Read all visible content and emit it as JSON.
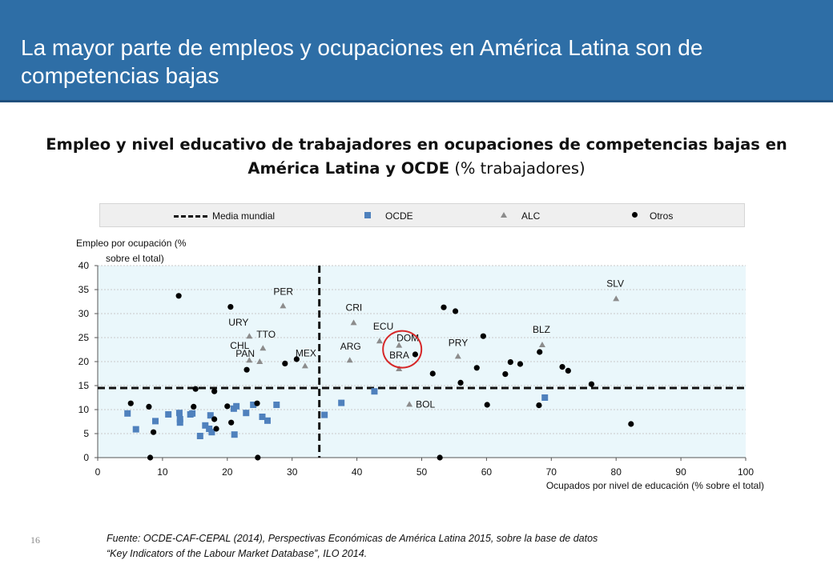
{
  "header": {
    "title": "La mayor parte de empleos y ocupaciones en América Latina son de competencias bajas"
  },
  "subtitle": {
    "bold": "Empleo y nivel educativo de trabajadores en ocupaciones de competencias bajas en América Latina y OCDE",
    "normal": " (% trabajadores)"
  },
  "legend": {
    "mean": "Media mundial",
    "oecd": "OCDE",
    "alc": "ALC",
    "others": "Otros"
  },
  "source": {
    "line1": "Fuente: OCDE-CAF-CEPAL (2014), Perspectivas Económicas de América Latina 2015,  sobre la base de datos",
    "line2": "“Key Indicators of the Labour Market Database”, ILO 2014."
  },
  "page_number": "16",
  "colors": {
    "header": "#2e6ea6",
    "plot_bg": "#eaf7fb",
    "oecd": "#4f81bd",
    "alc": "#8c8c8c",
    "others": "#000000",
    "highlight": "#d62728"
  },
  "chart_data": {
    "type": "scatter",
    "xlabel": "Ocupados por nivel de educación (% sobre el total)",
    "ylabel_lines": [
      "Empleo por ocupación (%",
      "sobre el total)"
    ],
    "xlim": [
      0,
      100
    ],
    "ylim": [
      0,
      40
    ],
    "xticks": [
      0,
      10,
      20,
      30,
      40,
      50,
      60,
      70,
      80,
      90,
      100
    ],
    "yticks": [
      0,
      5,
      10,
      15,
      20,
      25,
      30,
      35,
      40
    ],
    "reference_lines": {
      "x": 34.2,
      "y": 14.5,
      "label": "Media mundial"
    },
    "highlight": {
      "label": "DOM",
      "x": 46.5,
      "y": 23.4
    },
    "series": [
      {
        "name": "OCDE",
        "marker": "square",
        "points": [
          {
            "x": 4.6,
            "y": 9.2
          },
          {
            "x": 5.9,
            "y": 5.9
          },
          {
            "x": 8.9,
            "y": 7.6
          },
          {
            "x": 10.9,
            "y": 9.0
          },
          {
            "x": 12.6,
            "y": 9.3
          },
          {
            "x": 12.7,
            "y": 8.0
          },
          {
            "x": 12.7,
            "y": 7.3
          },
          {
            "x": 14.3,
            "y": 9.0
          },
          {
            "x": 14.6,
            "y": 9.2
          },
          {
            "x": 15.8,
            "y": 4.5
          },
          {
            "x": 16.6,
            "y": 6.7
          },
          {
            "x": 17.2,
            "y": 6.0
          },
          {
            "x": 17.4,
            "y": 8.8
          },
          {
            "x": 17.6,
            "y": 5.3
          },
          {
            "x": 21.0,
            "y": 10.2
          },
          {
            "x": 21.4,
            "y": 10.7
          },
          {
            "x": 21.1,
            "y": 4.8
          },
          {
            "x": 22.9,
            "y": 9.3
          },
          {
            "x": 24.0,
            "y": 11.0
          },
          {
            "x": 25.4,
            "y": 8.5
          },
          {
            "x": 26.2,
            "y": 7.7
          },
          {
            "x": 27.6,
            "y": 11.0
          },
          {
            "x": 35.0,
            "y": 8.9
          },
          {
            "x": 37.6,
            "y": 11.4
          },
          {
            "x": 42.7,
            "y": 13.8
          },
          {
            "x": 69.0,
            "y": 12.5
          }
        ]
      },
      {
        "name": "ALC",
        "marker": "triangle",
        "points": [
          {
            "x": 28.6,
            "y": 31.6,
            "label": "PER"
          },
          {
            "x": 23.4,
            "y": 25.3,
            "label": "URY"
          },
          {
            "x": 25.5,
            "y": 22.8,
            "label": "TTO"
          },
          {
            "x": 23.4,
            "y": 20.3,
            "label": "CHL"
          },
          {
            "x": 25.0,
            "y": 20.0,
            "label": "PAN"
          },
          {
            "x": 32.0,
            "y": 19.1,
            "label": "MEX"
          },
          {
            "x": 39.5,
            "y": 28.1,
            "label": "CRI"
          },
          {
            "x": 38.9,
            "y": 20.3,
            "label": "ARG"
          },
          {
            "x": 43.5,
            "y": 24.3,
            "label": "ECU"
          },
          {
            "x": 46.5,
            "y": 23.4,
            "label": "DOM"
          },
          {
            "x": 46.5,
            "y": 18.5,
            "label": "BRA"
          },
          {
            "x": 55.6,
            "y": 21.1,
            "label": "PRY"
          },
          {
            "x": 48.1,
            "y": 11.1,
            "label": "BOL"
          },
          {
            "x": 68.6,
            "y": 23.5,
            "label": "BLZ"
          },
          {
            "x": 80.0,
            "y": 33.1,
            "label": "SLV"
          }
        ]
      },
      {
        "name": "Otros",
        "marker": "circle",
        "points": [
          {
            "x": 5.1,
            "y": 11.3
          },
          {
            "x": 7.9,
            "y": 10.6
          },
          {
            "x": 8.1,
            "y": 0.0
          },
          {
            "x": 8.6,
            "y": 5.3
          },
          {
            "x": 12.5,
            "y": 33.7
          },
          {
            "x": 14.8,
            "y": 10.6
          },
          {
            "x": 15.1,
            "y": 14.3
          },
          {
            "x": 18.0,
            "y": 13.8
          },
          {
            "x": 18.0,
            "y": 8.0
          },
          {
            "x": 18.3,
            "y": 6.0
          },
          {
            "x": 20.0,
            "y": 10.7
          },
          {
            "x": 20.5,
            "y": 31.4
          },
          {
            "x": 20.6,
            "y": 7.3
          },
          {
            "x": 23.0,
            "y": 18.3
          },
          {
            "x": 24.6,
            "y": 11.3
          },
          {
            "x": 24.7,
            "y": 0.0
          },
          {
            "x": 28.9,
            "y": 19.6
          },
          {
            "x": 30.7,
            "y": 20.5
          },
          {
            "x": 49.0,
            "y": 21.5
          },
          {
            "x": 51.7,
            "y": 17.5
          },
          {
            "x": 52.8,
            "y": 0.0
          },
          {
            "x": 53.4,
            "y": 31.3
          },
          {
            "x": 55.2,
            "y": 30.5
          },
          {
            "x": 56.0,
            "y": 15.6
          },
          {
            "x": 58.5,
            "y": 18.7
          },
          {
            "x": 59.5,
            "y": 25.3
          },
          {
            "x": 60.1,
            "y": 11.0
          },
          {
            "x": 62.9,
            "y": 17.4
          },
          {
            "x": 63.7,
            "y": 19.9
          },
          {
            "x": 65.2,
            "y": 19.5
          },
          {
            "x": 68.1,
            "y": 10.9
          },
          {
            "x": 68.2,
            "y": 22.0
          },
          {
            "x": 71.7,
            "y": 18.9
          },
          {
            "x": 72.6,
            "y": 18.1
          },
          {
            "x": 76.2,
            "y": 15.3
          },
          {
            "x": 82.3,
            "y": 7.0
          }
        ]
      }
    ]
  }
}
